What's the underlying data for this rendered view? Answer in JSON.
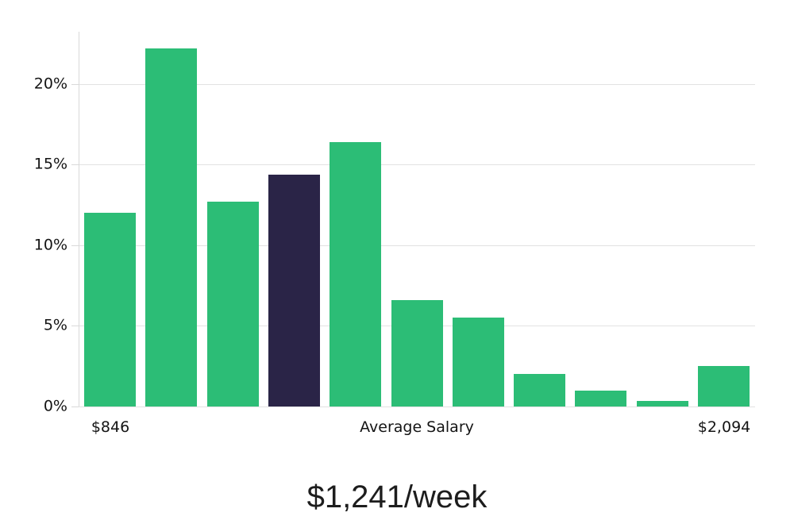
{
  "chart_data": {
    "type": "bar",
    "subtype": "histogram",
    "title": "$1,241/week",
    "values": [
      12.0,
      22.2,
      12.7,
      14.4,
      16.4,
      6.6,
      5.5,
      2.0,
      1.0,
      0.35,
      2.5
    ],
    "unit": "%",
    "highlighted_index": 3,
    "y_ticks": [
      {
        "label": "0%",
        "value": 0
      },
      {
        "label": "5%",
        "value": 5
      },
      {
        "label": "10%",
        "value": 10
      },
      {
        "label": "15%",
        "value": 15
      },
      {
        "label": "20%",
        "value": 20
      }
    ],
    "ylim": [
      0,
      23.25
    ],
    "x_labels": [
      {
        "text": "$846",
        "bar_index": 0
      },
      {
        "text": "Average Salary",
        "bar_index": 5
      },
      {
        "text": "$2,094",
        "bar_index": 10
      }
    ],
    "grid": "horizontal",
    "legend": "none",
    "colors": {
      "bar": "#2cbd76",
      "highlighted_bar": "#2a2447",
      "gridline": "#e2e2e2",
      "axis": "#d9d9d9",
      "label_text": "#141414",
      "title_text": "#1d1d1d"
    }
  }
}
